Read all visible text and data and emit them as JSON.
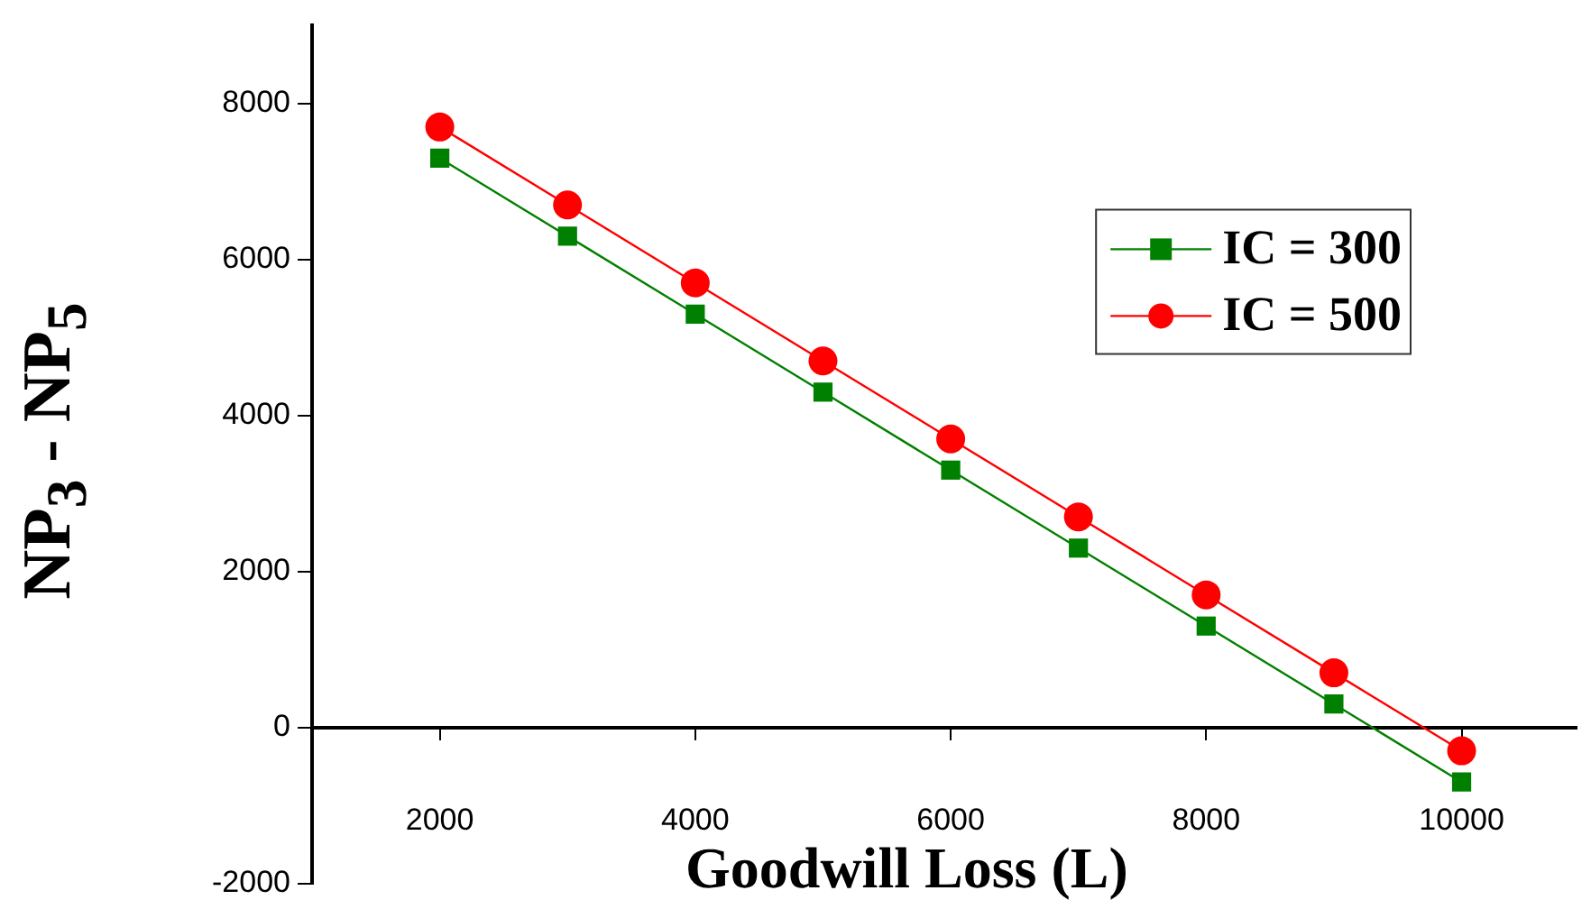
{
  "chart_data": {
    "type": "line",
    "xlabel": "Goodwill Loss (L)",
    "ylabel": "NP$_{3}$ - NP$_{5}$",
    "x": [
      2000,
      3000,
      4000,
      5000,
      6000,
      7000,
      8000,
      9000,
      10000
    ],
    "series": [
      {
        "name": "IC = 300",
        "color": "#008000",
        "marker": "square",
        "values": [
          7300,
          6300,
          5300,
          4300,
          3300,
          2300,
          1300,
          300,
          -700
        ]
      },
      {
        "name": "IC = 500",
        "color": "#ff0000",
        "marker": "circle",
        "values": [
          7700,
          6700,
          5700,
          4700,
          3700,
          2700,
          1700,
          700,
          -300
        ]
      }
    ],
    "xlim": [
      1000,
      10900
    ],
    "xticks": [
      2000,
      4000,
      6000,
      8000,
      10000
    ],
    "ylim": [
      -2000,
      9000
    ],
    "yticks": [
      -2000,
      0,
      2000,
      4000,
      6000,
      8000
    ],
    "grid": false,
    "legend": "right",
    "line_style": "solid"
  }
}
